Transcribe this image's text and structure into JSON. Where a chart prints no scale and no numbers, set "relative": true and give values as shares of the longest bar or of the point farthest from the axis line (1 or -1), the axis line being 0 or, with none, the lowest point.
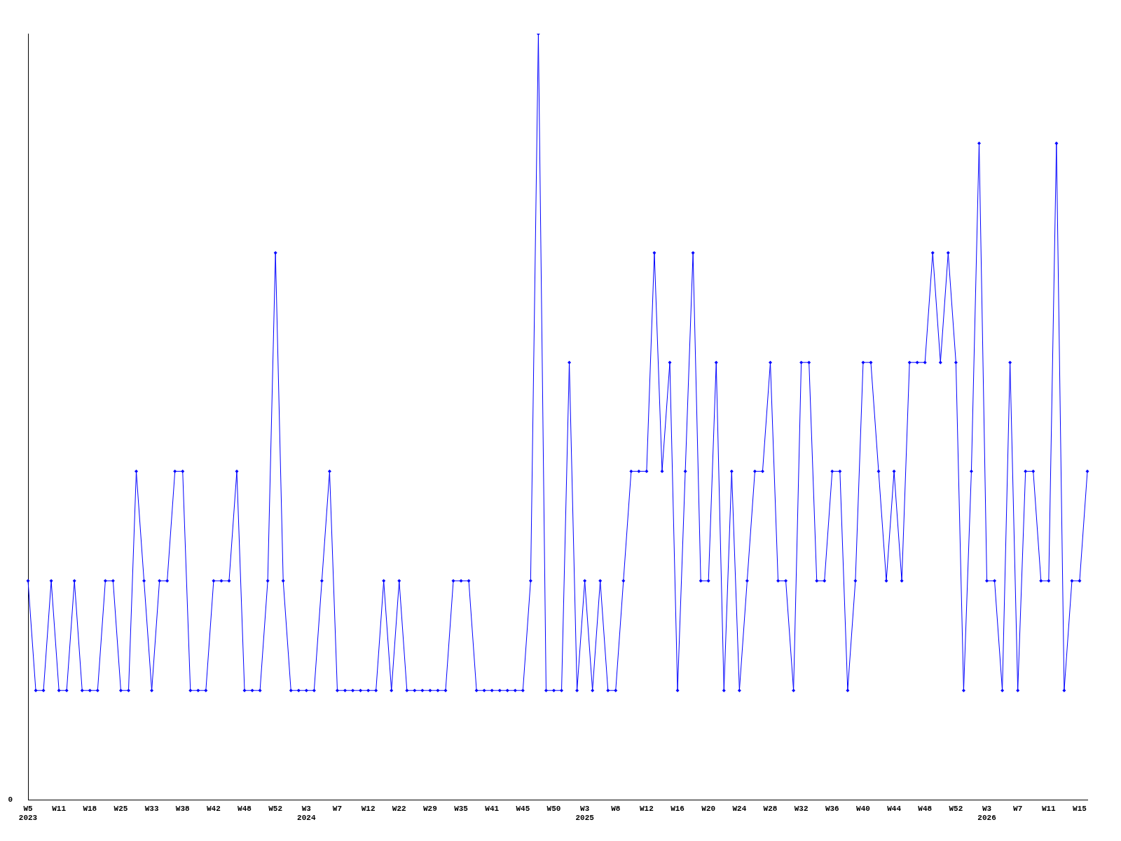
{
  "chart_data": {
    "type": "line",
    "relative": true,
    "color": "#0000ff",
    "marker": "diamond",
    "grid": false,
    "legend": false,
    "annotations": [
      "0"
    ],
    "categories": [
      "W5\n2023",
      null,
      null,
      null,
      "W11",
      null,
      null,
      null,
      "W18",
      null,
      null,
      null,
      "W25",
      null,
      null,
      null,
      "W33",
      null,
      null,
      null,
      "W38",
      null,
      null,
      null,
      "W42",
      null,
      null,
      null,
      "W48",
      null,
      null,
      null,
      "W52",
      null,
      null,
      null,
      "W3\n2024",
      null,
      null,
      null,
      "W7",
      null,
      null,
      null,
      "W12",
      null,
      null,
      null,
      "W22",
      null,
      null,
      null,
      "W29",
      null,
      null,
      null,
      "W35",
      null,
      null,
      null,
      "W41",
      null,
      null,
      null,
      "W45",
      null,
      null,
      null,
      "W50",
      null,
      null,
      null,
      "W3\n2025",
      null,
      null,
      null,
      "W8",
      null,
      null,
      null,
      "W12",
      null,
      null,
      null,
      "W16",
      null,
      null,
      null,
      "W20",
      null,
      null,
      null,
      "W24",
      null,
      null,
      null,
      "W28",
      null,
      null,
      null,
      "W32",
      null,
      null,
      null,
      "W36",
      null,
      null,
      null,
      "W40",
      null,
      null,
      null,
      "W44",
      null,
      null,
      null,
      "W48",
      null,
      null,
      null,
      "W52",
      null,
      null,
      null,
      "W3\n2026",
      null,
      null,
      null,
      "W7",
      null,
      null,
      null,
      "W11",
      null,
      null,
      null,
      "W15",
      null
    ],
    "values": [
      0.286,
      0.143,
      0.143,
      0.286,
      0.143,
      0.143,
      0.286,
      0.143,
      0.143,
      0.143,
      0.286,
      0.286,
      0.143,
      0.143,
      0.429,
      0.286,
      0.143,
      0.286,
      0.286,
      0.429,
      0.429,
      0.143,
      0.143,
      0.143,
      0.286,
      0.286,
      0.286,
      0.429,
      0.143,
      0.143,
      0.143,
      0.286,
      0.714,
      0.286,
      0.143,
      0.143,
      0.143,
      0.143,
      0.286,
      0.429,
      0.143,
      0.143,
      0.143,
      0.143,
      0.143,
      0.143,
      0.286,
      0.143,
      0.286,
      0.143,
      0.143,
      0.143,
      0.143,
      0.143,
      0.143,
      0.286,
      0.286,
      0.286,
      0.143,
      0.143,
      0.143,
      0.143,
      0.143,
      0.143,
      0.143,
      0.286,
      1,
      0.143,
      0.143,
      0.143,
      0.571,
      0.143,
      0.286,
      0.143,
      0.286,
      0.143,
      0.143,
      0.286,
      0.429,
      0.429,
      0.429,
      0.714,
      0.429,
      0.571,
      0.143,
      0.429,
      0.714,
      0.286,
      0.286,
      0.571,
      0.143,
      0.429,
      0.143,
      0.286,
      0.429,
      0.429,
      0.571,
      0.286,
      0.286,
      0.143,
      0.571,
      0.571,
      0.286,
      0.286,
      0.429,
      0.429,
      0.143,
      0.286,
      0.571,
      0.571,
      0.429,
      0.286,
      0.429,
      0.286,
      0.571,
      0.571,
      0.571,
      0.714,
      0.571,
      0.714,
      0.571,
      0.143,
      0.429,
      0.857,
      0.286,
      0.286,
      0.143,
      0.571,
      0.143,
      0.429,
      0.429,
      0.286,
      0.286,
      0.857,
      0.143,
      0.286,
      0.286,
      0.429
    ]
  }
}
